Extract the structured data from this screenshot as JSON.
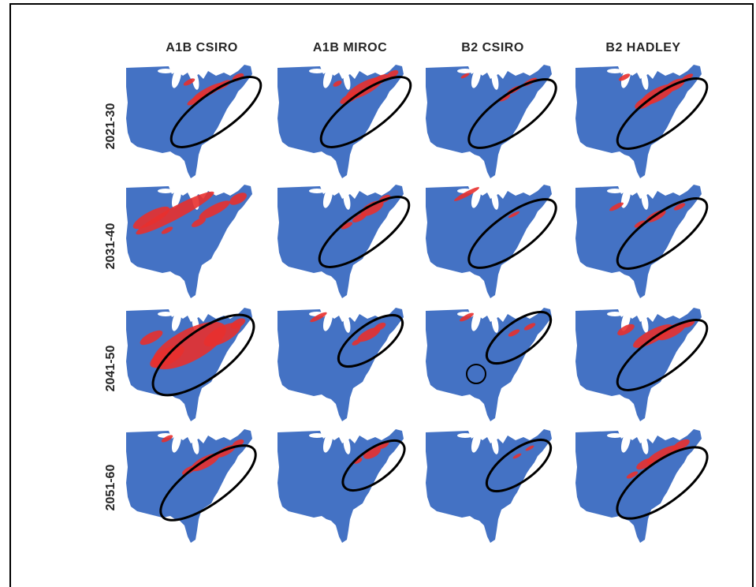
{
  "columns": [
    "A1B CSIRO",
    "A1B MIROC",
    "B2 CSIRO",
    "B2 HADLEY"
  ],
  "rows": [
    "2021-30",
    "2031-40",
    "2041-50",
    "2051-60"
  ],
  "colors": {
    "land": "#4472c4",
    "prediction": "#e8302e",
    "outline": "#000000",
    "frame": "#000000"
  },
  "map_annotation": "black ellipses enclose northeastern region of predicted red areas; small circle in B2 CSIRO 2041-50"
}
